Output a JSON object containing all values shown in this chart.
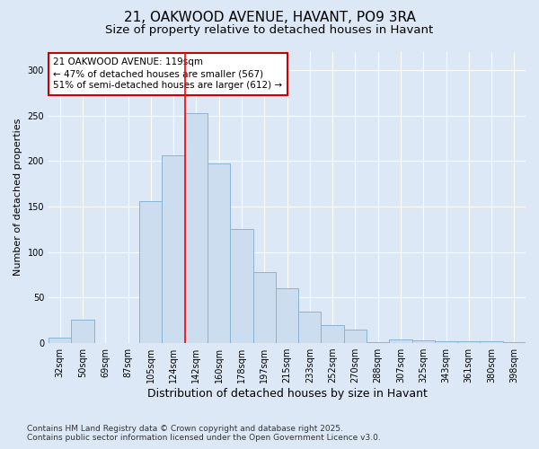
{
  "title": "21, OAKWOOD AVENUE, HAVANT, PO9 3RA",
  "subtitle": "Size of property relative to detached houses in Havant",
  "xlabel": "Distribution of detached houses by size in Havant",
  "ylabel": "Number of detached properties",
  "categories": [
    "32sqm",
    "50sqm",
    "69sqm",
    "87sqm",
    "105sqm",
    "124sqm",
    "142sqm",
    "160sqm",
    "178sqm",
    "197sqm",
    "215sqm",
    "233sqm",
    "252sqm",
    "270sqm",
    "288sqm",
    "307sqm",
    "325sqm",
    "343sqm",
    "361sqm",
    "380sqm",
    "398sqm"
  ],
  "values": [
    6,
    26,
    0,
    0,
    156,
    206,
    252,
    197,
    125,
    78,
    60,
    35,
    20,
    15,
    1,
    4,
    3,
    2,
    2,
    2,
    1
  ],
  "bar_color": "#ccddf0",
  "bar_edge_color": "#8ab4d4",
  "red_line_index": 5,
  "annotation_text": "21 OAKWOOD AVENUE: 119sqm\n← 47% of detached houses are smaller (567)\n51% of semi-detached houses are larger (612) →",
  "annotation_box_facecolor": "#ffffff",
  "annotation_box_edgecolor": "#cc0000",
  "ylim": [
    0,
    320
  ],
  "yticks": [
    0,
    50,
    100,
    150,
    200,
    250,
    300
  ],
  "background_color": "#dce8f5",
  "plot_background_color": "#dce8f5",
  "grid_color": "#ffffff",
  "footnote": "Contains HM Land Registry data © Crown copyright and database right 2025.\nContains public sector information licensed under the Open Government Licence v3.0.",
  "title_fontsize": 11,
  "subtitle_fontsize": 9.5,
  "xlabel_fontsize": 9,
  "ylabel_fontsize": 8,
  "tick_fontsize": 7,
  "annotation_fontsize": 7.5,
  "footnote_fontsize": 6.5
}
